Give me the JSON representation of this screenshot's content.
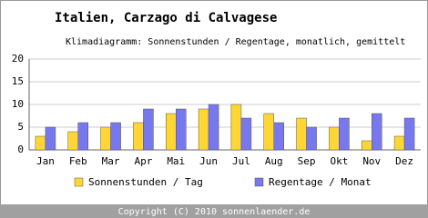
{
  "chart_data": {
    "type": "bar",
    "title": "Italien, Carzago di Calvagese",
    "subtitle": "Klimadiagramm: Sonnenstunden / Regentage, monatlich, gemittelt",
    "categories": [
      "Jan",
      "Feb",
      "Mar",
      "Apr",
      "Mai",
      "Jun",
      "Jul",
      "Aug",
      "Sep",
      "Okt",
      "Nov",
      "Dez"
    ],
    "series": [
      {
        "name": "Sonnenstunden / Tag",
        "color": "#ffd633",
        "values": [
          3,
          4,
          5,
          6,
          8,
          9,
          10,
          8,
          7,
          5,
          2,
          3
        ]
      },
      {
        "name": "Regentage / Monat",
        "color": "#7878ee",
        "values": [
          5,
          6,
          6,
          9,
          9,
          10,
          7,
          6,
          5,
          7,
          8,
          7
        ]
      }
    ],
    "ylim": [
      0,
      20
    ],
    "yticks": [
      0,
      5,
      10,
      15,
      20
    ],
    "grid": true
  },
  "footer": "Copyright (C) 2010 sonnenlaender.de"
}
